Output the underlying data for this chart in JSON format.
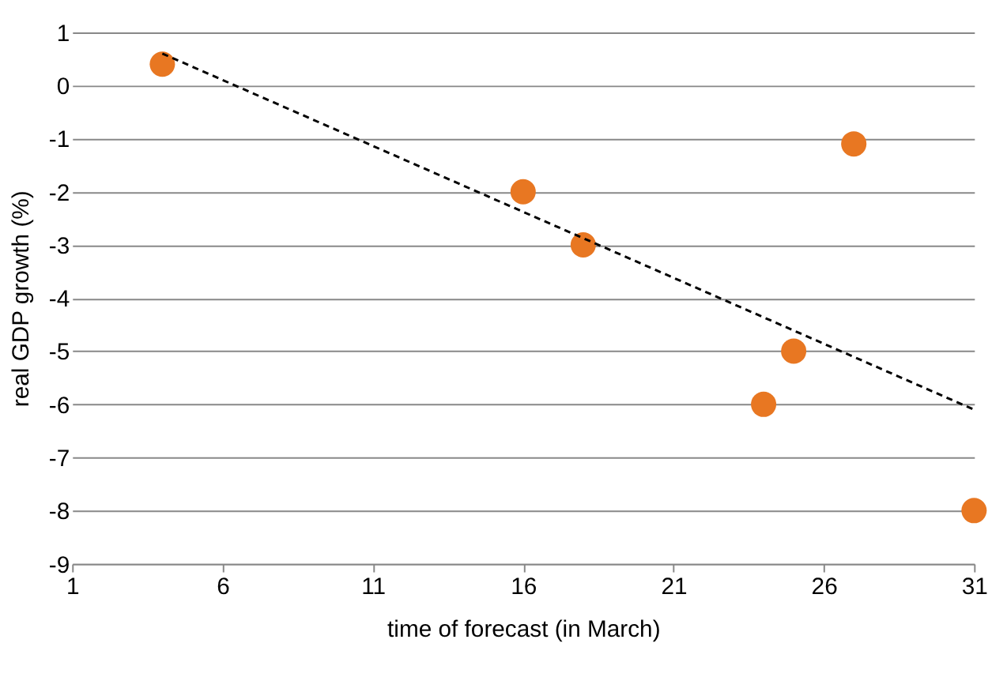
{
  "chart_data": {
    "type": "scatter",
    "xlabel": "time of forecast (in March)",
    "ylabel": "real GDP growth (%)",
    "series": [
      {
        "color": "#e87722",
        "marker": "circle",
        "x": [
          4,
          16,
          18,
          24,
          25,
          27,
          31
        ],
        "values": [
          0.4,
          -2,
          -3,
          -6,
          -5,
          -1.1,
          -8
        ]
      },
      {
        "type": "line",
        "color": "#000000",
        "line_style": "dashed",
        "x": [
          4,
          31
        ],
        "values": [
          0.6,
          -6.1
        ]
      }
    ],
    "xlim": [
      1,
      31
    ],
    "xticks": [
      1,
      6,
      11,
      16,
      21,
      26,
      31
    ],
    "ylim": [
      -9,
      1
    ],
    "yticks": [
      -9,
      -8,
      -7,
      -6,
      -5,
      -4,
      -3,
      -2,
      -1,
      0,
      1
    ],
    "grid": "y"
  }
}
